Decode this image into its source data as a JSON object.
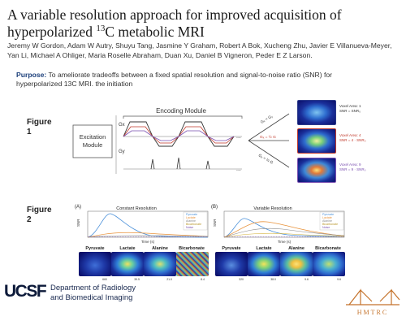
{
  "title": {
    "line1": "A variable resolution approach for improved acquisition of",
    "line2_pre": "hyperpolarized ",
    "line2_sup": "13",
    "line2_post": "C metabolic MRI"
  },
  "authors": "Jeremy W Gordon, Adam W Autry, Shuyu Tang, Jasmine Y Graham, Robert A Bok, Xucheng Zhu, Javier E Villanueva-Meyer, Yan Li, Michael A Ohliger, Maria Roselle Abraham, Duan Xu, Daniel B Vigneron, Peder E Z Larson.",
  "purpose": {
    "label": "Purpose:",
    "text": " To ameliorate tradeoffs between a fixed spatial resolution and signal-to-noise ratio (SNR) for hyperpolarized 13C MRI. the initiation"
  },
  "figure1": {
    "label_a": "Figure",
    "label_b": "1",
    "excitation": "Excitation\nModule",
    "excitation_l1": "Excitation",
    "excitation_l2": "Module",
    "encoding": "Encoding Module",
    "gx": "Gx",
    "gy": "Gy",
    "dots": "...",
    "voxels": [
      {
        "l1": "Voxel Area: 1",
        "l2": "SNR = SNR₀"
      },
      {
        "l1": "Voxel Area: 4",
        "l2": "SNR = 4 · SNR₀"
      },
      {
        "l1": "Voxel Area: 9",
        "l2": "SNR = 9 · SNR₀"
      }
    ],
    "arrow_labels": [
      "Gₓ = Gᵧ",
      "Gₓ = ½ G",
      "Gₓ = ⅓ G"
    ]
  },
  "figure2": {
    "label_a": "Figure",
    "label_b": "2",
    "panel_a": "(A)",
    "panel_b": "(B)",
    "title_a": "Constant Resolution",
    "title_b": "Variable Resolution",
    "ylabel": "SNR",
    "xlabel": "Time (s)",
    "legend": [
      "Pyruvate",
      "Lactate",
      "Alanine",
      "Bicarbonate",
      "Noise"
    ],
    "metabolites": [
      "Pyruvate",
      "Lactate",
      "Alanine",
      "Bicarbonate"
    ],
    "scale_a": [
      "660",
      "39.5",
      "21.0",
      "8.4"
    ],
    "scale_b": [
      "320",
      "38.0",
      "9.6",
      "9.6"
    ],
    "colors": {
      "pyruvate": "#4a90d9",
      "lactate": "#e8923a",
      "alanine": "#8a8a8a",
      "bicarbonate": "#d4b23a",
      "noise": "#7a4fb0"
    }
  },
  "footer": {
    "logo": "UCSF",
    "dept_l1": "Department of Radiology",
    "dept_l2": "and Biomedical Imaging",
    "right_logo": "HMTRC"
  }
}
